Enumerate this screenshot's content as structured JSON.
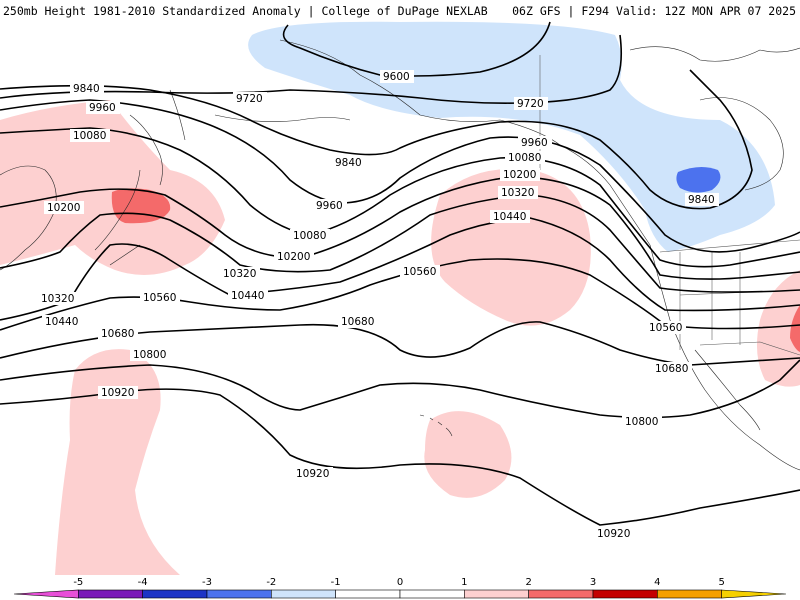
{
  "header": {
    "title_left": "250mb Height 1981-2010 Standardized Anomaly | College of DuPage NEXLAB",
    "title_right": "06Z GFS | F294 Valid: 12Z MON APR 07 2025"
  },
  "colors": {
    "pos1": "#fdd0d0",
    "pos2": "#f46a6a",
    "neg1": "#cfe4fb",
    "neg2": "#4c72ee",
    "contour": "#000000",
    "coast": "#2a2a2a"
  },
  "contour_labels": [
    {
      "id": "9600-a",
      "text": "9600"
    },
    {
      "id": "9720-a",
      "text": "9720"
    },
    {
      "id": "9720-b",
      "text": "9720"
    },
    {
      "id": "9840-a",
      "text": "9840"
    },
    {
      "id": "9840-b",
      "text": "9840"
    },
    {
      "id": "9840-c",
      "text": "9840"
    },
    {
      "id": "9960-a",
      "text": "9960"
    },
    {
      "id": "9960-b",
      "text": "9960"
    },
    {
      "id": "9960-c",
      "text": "9960"
    },
    {
      "id": "10080-a",
      "text": "10080"
    },
    {
      "id": "10080-b",
      "text": "10080"
    },
    {
      "id": "10080-c",
      "text": "10080"
    },
    {
      "id": "10200-a",
      "text": "10200"
    },
    {
      "id": "10200-b",
      "text": "10200"
    },
    {
      "id": "10200-c",
      "text": "10200"
    },
    {
      "id": "10320-a",
      "text": "10320"
    },
    {
      "id": "10320-b",
      "text": "10320"
    },
    {
      "id": "10320-c",
      "text": "10320"
    },
    {
      "id": "10440-a",
      "text": "10440"
    },
    {
      "id": "10440-b",
      "text": "10440"
    },
    {
      "id": "10440-c",
      "text": "10440"
    },
    {
      "id": "10560-a",
      "text": "10560"
    },
    {
      "id": "10560-b",
      "text": "10560"
    },
    {
      "id": "10560-c",
      "text": "10560"
    },
    {
      "id": "10680-a",
      "text": "10680"
    },
    {
      "id": "10680-b",
      "text": "10680"
    },
    {
      "id": "10680-c",
      "text": "10680"
    },
    {
      "id": "10800-a",
      "text": "10800"
    },
    {
      "id": "10800-b",
      "text": "10800"
    },
    {
      "id": "10920-a",
      "text": "10920"
    },
    {
      "id": "10920-b",
      "text": "10920"
    },
    {
      "id": "10920-c",
      "text": "10920"
    }
  ],
  "legend": {
    "ticks": [
      "-5",
      "-4",
      "-3",
      "-2",
      "-1",
      "0",
      "1",
      "2",
      "3",
      "4",
      "5"
    ],
    "colors": [
      "#e84fd8",
      "#7a19b8",
      "#1c34c6",
      "#4c72ee",
      "#cfe4fb",
      "#ffffff",
      "#ffffff",
      "#fdd0d0",
      "#f46a6a",
      "#c40000",
      "#f5a000",
      "#f5d000"
    ]
  }
}
